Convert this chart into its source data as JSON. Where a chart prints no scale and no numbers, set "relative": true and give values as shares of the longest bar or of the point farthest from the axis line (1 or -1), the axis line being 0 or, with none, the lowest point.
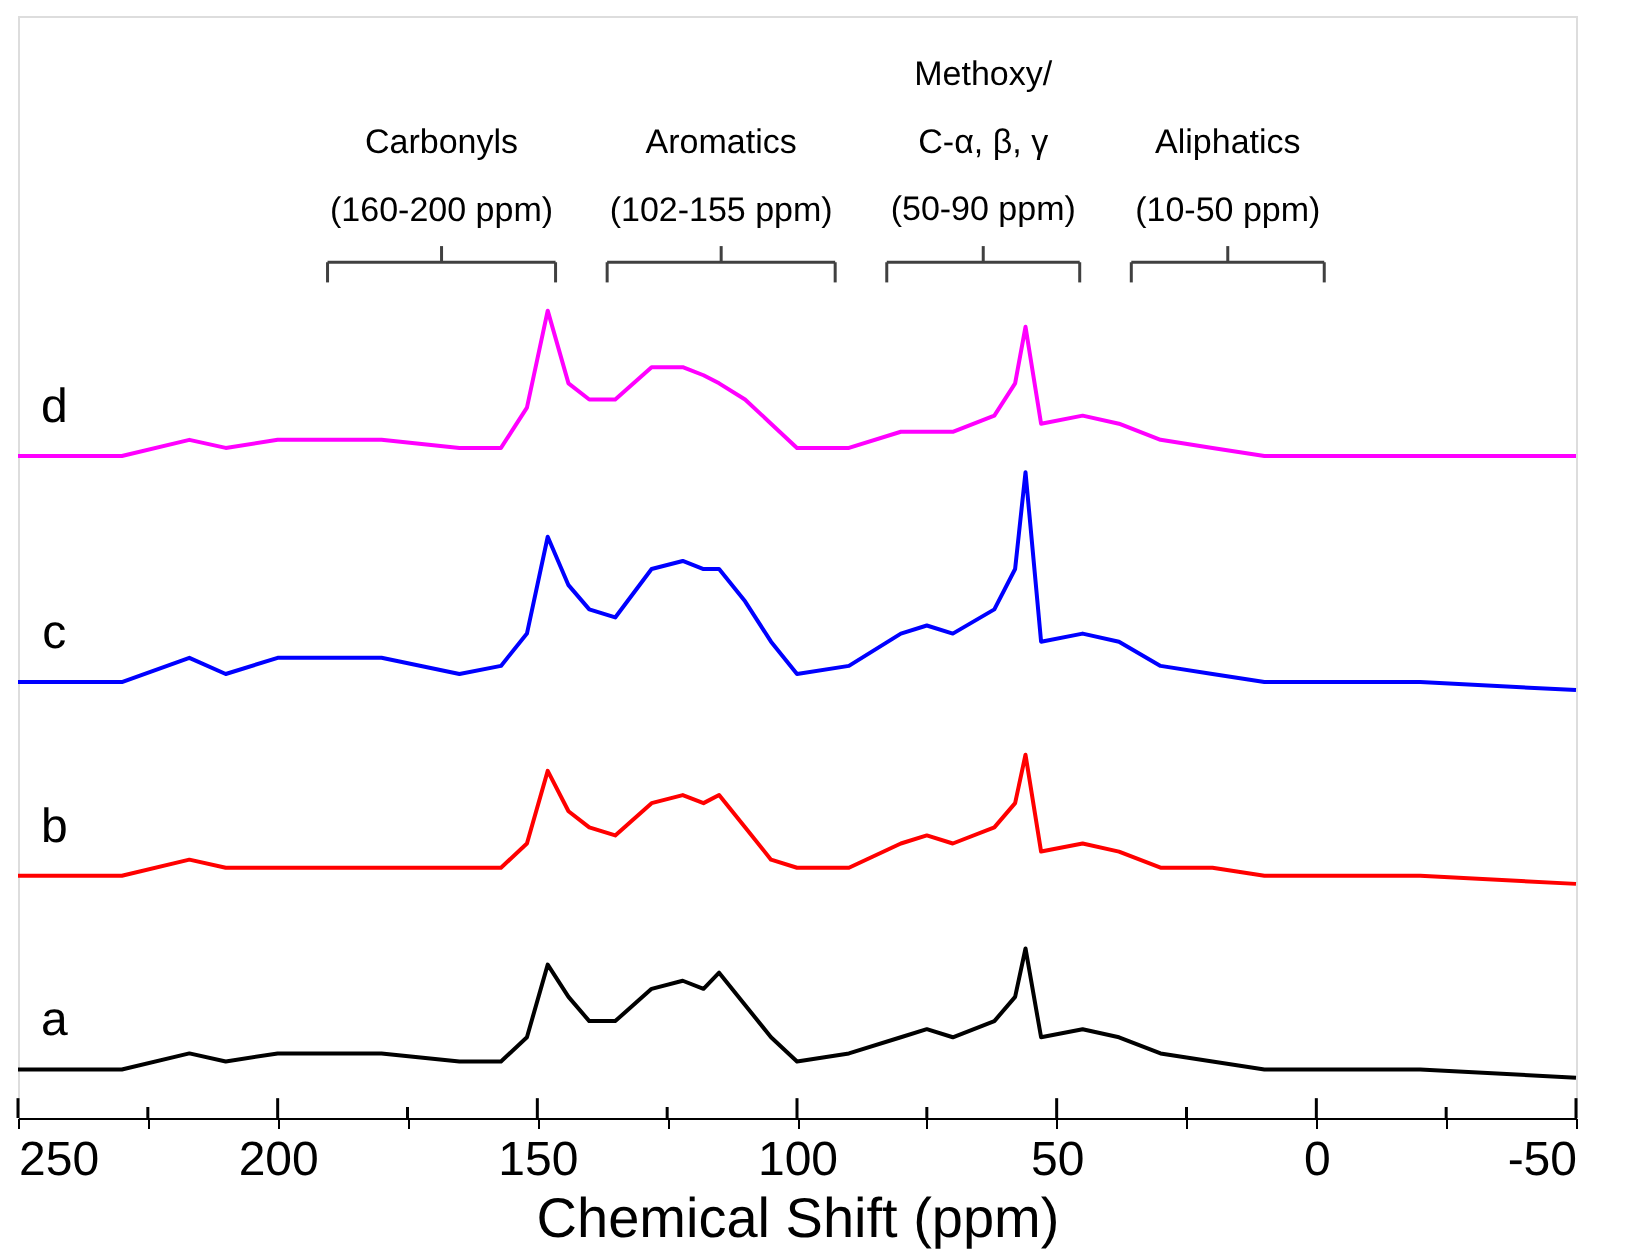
{
  "chart_data": {
    "type": "line",
    "relative": true,
    "xlabel": "Chemical Shift (ppm)",
    "x": [
      250,
      230,
      217,
      210,
      200,
      180,
      165,
      157,
      152,
      148,
      144,
      140,
      135,
      128,
      122,
      118,
      115,
      110,
      105,
      100,
      90,
      80,
      75,
      70,
      62,
      58,
      56,
      53,
      45,
      38,
      30,
      20,
      10,
      0,
      -20,
      -50
    ],
    "xlim": [
      250,
      -50
    ],
    "xticks": [
      250,
      {
        "value": 225,
        "label": null
      },
      200,
      {
        "value": 175,
        "label": null
      },
      150,
      {
        "value": 125,
        "label": null
      },
      100,
      {
        "value": 75,
        "label": null
      },
      50,
      {
        "value": 25,
        "label": null
      },
      0,
      {
        "value": -25,
        "label": null
      },
      -50
    ],
    "series": [
      {
        "name": "a",
        "color": "#000000",
        "values": [
          0.06,
          0.06,
          0.08,
          0.07,
          0.08,
          0.08,
          0.07,
          0.07,
          0.1,
          0.19,
          0.15,
          0.12,
          0.12,
          0.16,
          0.17,
          0.16,
          0.18,
          0.14,
          0.1,
          0.07,
          0.08,
          0.1,
          0.11,
          0.1,
          0.12,
          0.15,
          0.21,
          0.1,
          0.11,
          0.1,
          0.08,
          0.07,
          0.06,
          0.06,
          0.06,
          0.05
        ]
      },
      {
        "name": "b",
        "color": "#ff0000",
        "values": [
          0.3,
          0.3,
          0.32,
          0.31,
          0.31,
          0.31,
          0.31,
          0.31,
          0.34,
          0.43,
          0.38,
          0.36,
          0.35,
          0.39,
          0.4,
          0.39,
          0.4,
          0.36,
          0.32,
          0.31,
          0.31,
          0.34,
          0.35,
          0.34,
          0.36,
          0.39,
          0.45,
          0.33,
          0.34,
          0.33,
          0.31,
          0.31,
          0.3,
          0.3,
          0.3,
          0.29
        ]
      },
      {
        "name": "c",
        "color": "#0000ff",
        "values": [
          0.54,
          0.54,
          0.57,
          0.55,
          0.57,
          0.57,
          0.55,
          0.56,
          0.6,
          0.72,
          0.66,
          0.63,
          0.62,
          0.68,
          0.69,
          0.68,
          0.68,
          0.64,
          0.59,
          0.55,
          0.56,
          0.6,
          0.61,
          0.6,
          0.63,
          0.68,
          0.8,
          0.59,
          0.6,
          0.59,
          0.56,
          0.55,
          0.54,
          0.54,
          0.54,
          0.53
        ]
      },
      {
        "name": "d",
        "color": "#ff00ff",
        "values": [
          0.82,
          0.82,
          0.84,
          0.83,
          0.84,
          0.84,
          0.83,
          0.83,
          0.88,
          1.0,
          0.91,
          0.89,
          0.89,
          0.93,
          0.93,
          0.92,
          0.91,
          0.89,
          0.86,
          0.83,
          0.83,
          0.85,
          0.85,
          0.85,
          0.87,
          0.91,
          0.98,
          0.86,
          0.87,
          0.86,
          0.84,
          0.83,
          0.82,
          0.82,
          0.82,
          0.82
        ]
      }
    ],
    "annotations": [
      "Carbonyls\n(160-200 ppm)",
      "Aromatics\n(102-155 ppm)",
      "Methoxy/\nC-α, β, γ\n(50-90 ppm)",
      "Aliphatics\n(10-50 ppm)"
    ],
    "legend": false,
    "grid": false,
    "line_style": "solid",
    "marker": "none"
  }
}
